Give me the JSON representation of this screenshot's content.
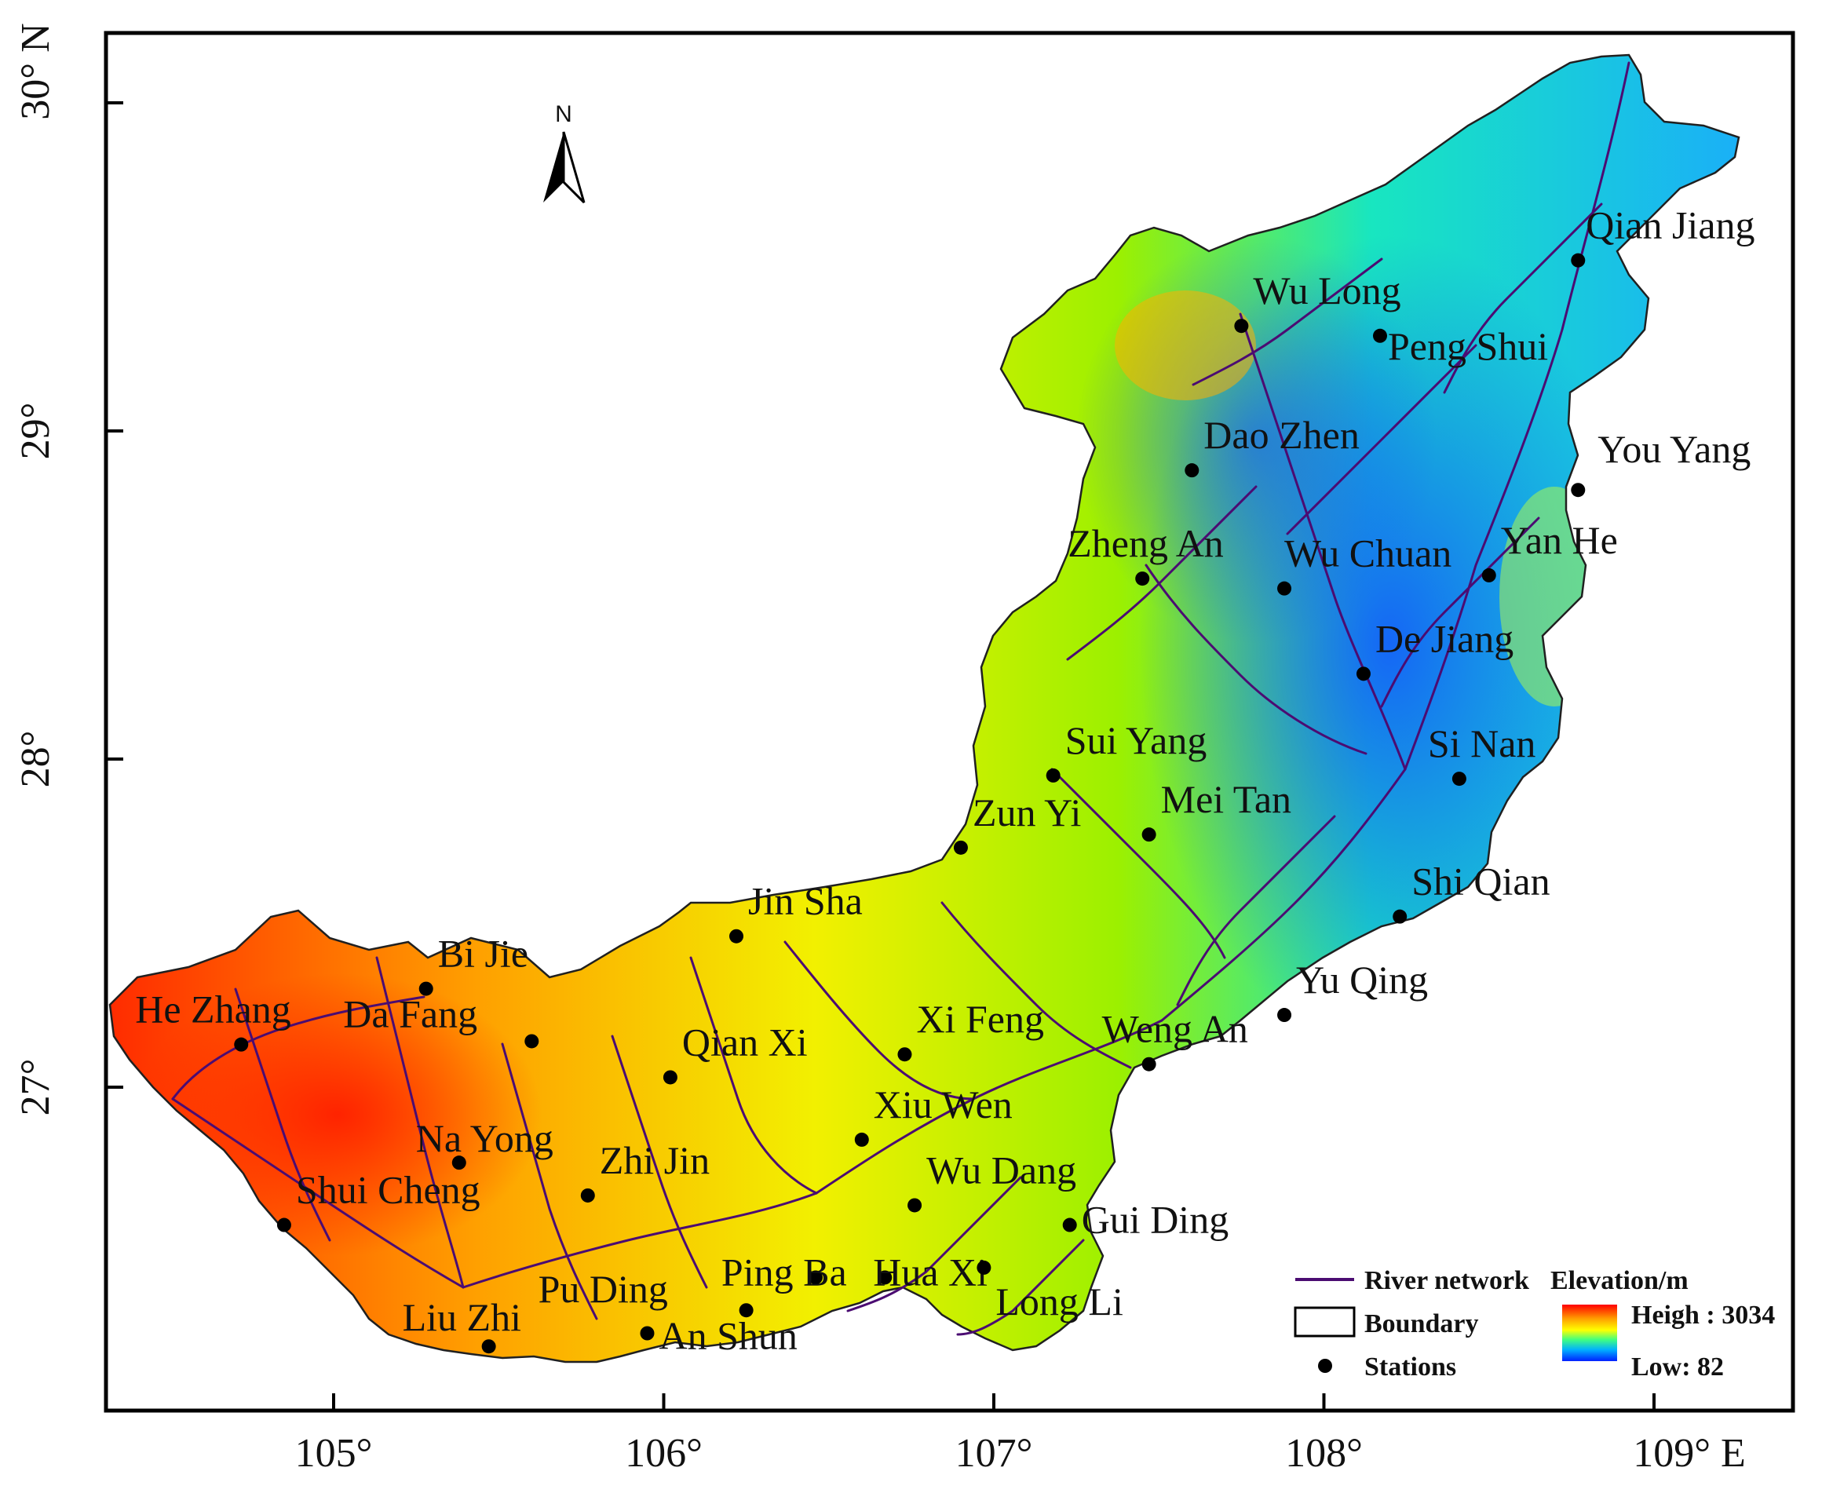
{
  "map": {
    "north_arrow_label": "N",
    "lon_ticks": [
      {
        "value": 105,
        "label": "105°"
      },
      {
        "value": 106,
        "label": "106°"
      },
      {
        "value": 107,
        "label": "107°"
      },
      {
        "value": 108,
        "label": "108°"
      },
      {
        "value": 109,
        "label": "109° E"
      }
    ],
    "lat_ticks": [
      {
        "value": 27,
        "label": "27°"
      },
      {
        "value": 28,
        "label": "28°"
      },
      {
        "value": 29,
        "label": "29°"
      },
      {
        "value": 30,
        "label": "30° N"
      }
    ],
    "extent": {
      "lon": [
        104.3,
        109.5
      ],
      "lat": [
        26.1,
        30.2
      ]
    },
    "stations": [
      {
        "name": "Qian Jiang",
        "lon": 108.77,
        "lat": 29.52
      },
      {
        "name": "Wu Long",
        "lon": 107.75,
        "lat": 29.32
      },
      {
        "name": "Peng Shui",
        "lon": 108.17,
        "lat": 29.29
      },
      {
        "name": "Dao Zhen",
        "lon": 107.6,
        "lat": 28.88
      },
      {
        "name": "You Yang",
        "lon": 108.77,
        "lat": 28.82
      },
      {
        "name": "Zheng An",
        "lon": 107.45,
        "lat": 28.55
      },
      {
        "name": "Wu Chuan",
        "lon": 107.88,
        "lat": 28.52
      },
      {
        "name": "Yan He",
        "lon": 108.5,
        "lat": 28.56
      },
      {
        "name": "De Jiang",
        "lon": 108.12,
        "lat": 28.26
      },
      {
        "name": "Sui Yang",
        "lon": 107.18,
        "lat": 27.95
      },
      {
        "name": "Si Nan",
        "lon": 108.41,
        "lat": 27.94
      },
      {
        "name": "Mei Tan",
        "lon": 107.47,
        "lat": 27.77
      },
      {
        "name": "Shi Qian",
        "lon": 108.23,
        "lat": 27.52
      },
      {
        "name": "Zun Yi",
        "lon": 106.9,
        "lat": 27.73
      },
      {
        "name": "Jin Sha",
        "lon": 106.22,
        "lat": 27.46
      },
      {
        "name": "Bi Jie",
        "lon": 105.28,
        "lat": 27.3
      },
      {
        "name": "He Zhang",
        "lon": 104.72,
        "lat": 27.13
      },
      {
        "name": "Da Fang",
        "lon": 105.6,
        "lat": 27.14
      },
      {
        "name": "Qian Xi",
        "lon": 106.02,
        "lat": 27.03
      },
      {
        "name": "Xi Feng",
        "lon": 106.73,
        "lat": 27.1
      },
      {
        "name": "Weng An",
        "lon": 107.47,
        "lat": 27.07
      },
      {
        "name": "Yu Qing",
        "lon": 107.88,
        "lat": 27.22
      },
      {
        "name": "Xiu Wen",
        "lon": 106.6,
        "lat": 26.84
      },
      {
        "name": "Na Yong",
        "lon": 105.38,
        "lat": 26.77
      },
      {
        "name": "Zhi Jin",
        "lon": 105.77,
        "lat": 26.67
      },
      {
        "name": "Shui Cheng",
        "lon": 104.85,
        "lat": 26.58
      },
      {
        "name": "Wu Dang",
        "lon": 106.76,
        "lat": 26.64
      },
      {
        "name": "Gui Ding",
        "lon": 107.23,
        "lat": 26.58
      },
      {
        "name": "Ping Ba",
        "lon": 106.46,
        "lat": 26.42
      },
      {
        "name": "Hua Xi",
        "lon": 106.67,
        "lat": 26.42
      },
      {
        "name": "Long Li",
        "lon": 106.97,
        "lat": 26.45
      },
      {
        "name": "Pu Ding",
        "lon": 106.25,
        "lat": 26.32
      },
      {
        "name": "Liu Zhi",
        "lon": 105.47,
        "lat": 26.21
      },
      {
        "name": "An Shun",
        "lon": 105.95,
        "lat": 26.25
      }
    ]
  },
  "legend": {
    "river_network": "River network",
    "boundary": "Boundary",
    "stations": "Stations",
    "elevation_title": "Elevation/m",
    "high": "Heigh : 3034",
    "low": "Low: 82"
  },
  "colors": {
    "river": "#4b0c72",
    "frame": "#000000",
    "ramp": [
      "#ff0000",
      "#ff8c00",
      "#ffff00",
      "#00ffc0",
      "#00a0ff",
      "#0000ff"
    ]
  }
}
